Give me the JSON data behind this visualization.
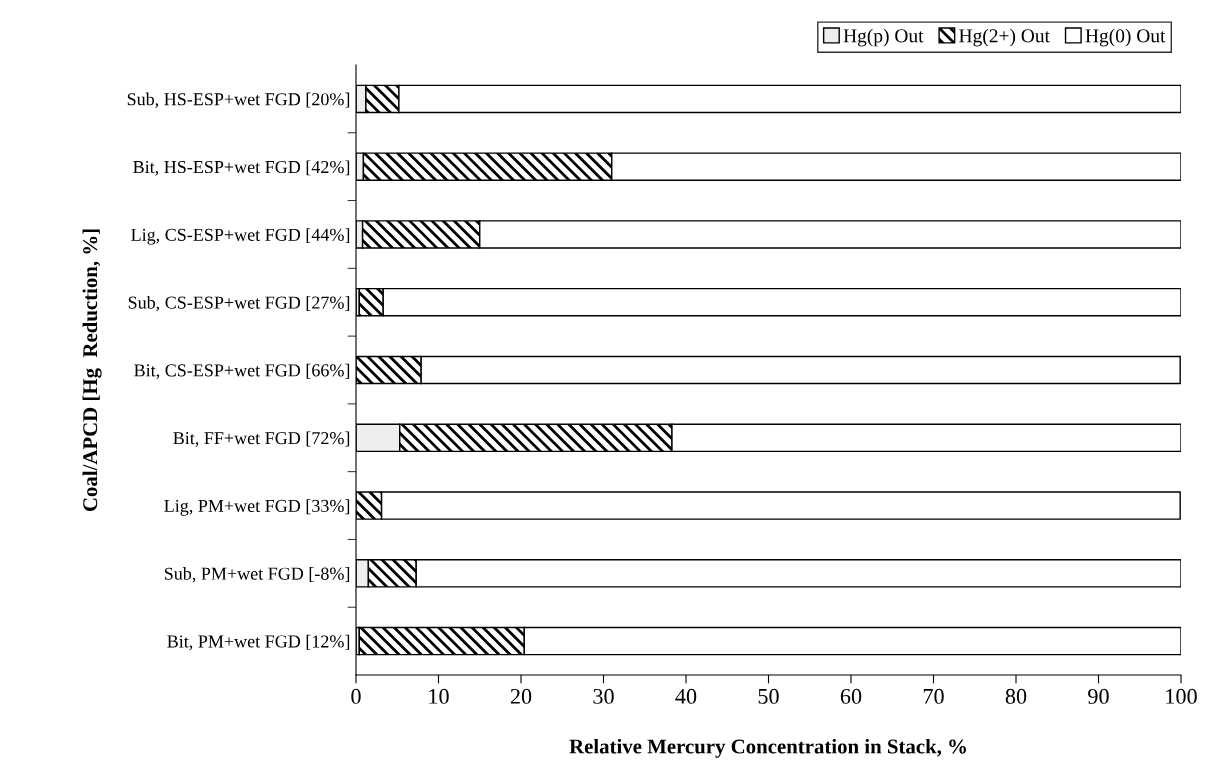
{
  "chart_data": {
    "type": "bar",
    "orientation": "horizontal",
    "stacked": true,
    "xlabel": "Relative Mercury Concentration in Stack, %",
    "ylabel": "Coal/APCD [Hg  Reduction, %]",
    "categories": [
      "Sub, HS-ESP+wet FGD [20%]",
      "Bit, HS-ESP+wet FGD [42%]",
      "Lig, CS-ESP+wet FGD [44%]",
      "Sub, CS-ESP+wet FGD [27%]",
      "Bit, CS-ESP+wet FGD [66%]",
      "Bit, FF+wet FGD [72%]",
      "Lig, PM+wet FGD [33%]",
      "Sub, PM+wet FGD [-8%]",
      "Bit, PM+wet FGD [12%]"
    ],
    "series": [
      {
        "name": "Hg(p) Out",
        "color": "#eeeeee",
        "values": [
          1.2,
          0.9,
          0.8,
          0.4,
          null,
          5.3,
          null,
          1.5,
          0.4
        ]
      },
      {
        "name": "Hg(2+) Out",
        "color": "#000000",
        "values": [
          4.0,
          30.1,
          14.2,
          2.9,
          7.9,
          33.0,
          3.1,
          5.8,
          20.0
        ]
      },
      {
        "name": "Hg(0) Out",
        "color": "#ffffff",
        "values": [
          94.8,
          69.0,
          85.0,
          96.7,
          92.0,
          61.7,
          96.8,
          92.7,
          79.6
        ]
      }
    ],
    "xlim": [
      0,
      100
    ],
    "xticks": [
      0,
      10,
      20,
      30,
      40,
      50,
      60,
      70,
      80,
      90,
      100
    ],
    "legend": "top right",
    "grid": false
  }
}
